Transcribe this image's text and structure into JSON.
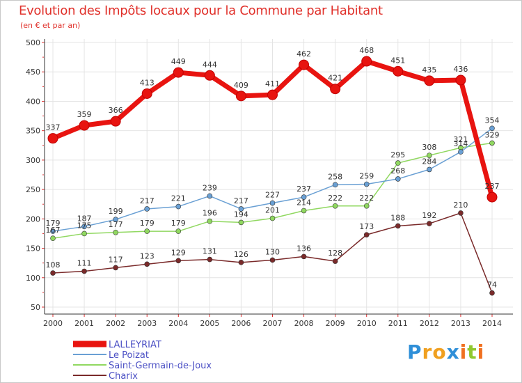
{
  "chart_data": {
    "type": "line",
    "title": "Evolution des Impôts locaux pour la Commune par Habitant",
    "subtitle": "(en € et par an)",
    "xlabel": "",
    "ylabel": "",
    "x": [
      "2000",
      "2001",
      "2002",
      "2003",
      "2004",
      "2005",
      "2006",
      "2007",
      "2008",
      "2009",
      "2010",
      "2011",
      "2012",
      "2013",
      "2014"
    ],
    "ylim": [
      50,
      500
    ],
    "yticks": [
      50,
      100,
      150,
      200,
      250,
      300,
      350,
      400,
      450,
      500
    ],
    "legend_position": "bottom-left",
    "series": [
      {
        "name": "LALLEYRIAT",
        "color": "#e81410",
        "values": [
          337,
          359,
          366,
          413,
          449,
          444,
          409,
          411,
          462,
          421,
          468,
          451,
          435,
          436,
          237
        ]
      },
      {
        "name": "Le Poizat",
        "color": "#6aa0d4",
        "values": [
          179,
          187,
          199,
          217,
          221,
          239,
          217,
          227,
          237,
          258,
          259,
          268,
          284,
          314,
          354
        ]
      },
      {
        "name": "Saint-Germain-de-Joux",
        "color": "#90d860",
        "values": [
          167,
          175,
          177,
          179,
          179,
          196,
          194,
          201,
          214,
          222,
          222,
          295,
          308,
          321,
          329
        ]
      },
      {
        "name": "Charix",
        "color": "#7a2a2a",
        "values": [
          108,
          111,
          117,
          123,
          129,
          131,
          126,
          130,
          136,
          128,
          173,
          188,
          192,
          210,
          74
        ]
      }
    ]
  },
  "logo": {
    "letters": [
      "P",
      "r",
      "o",
      "x",
      "i",
      "t",
      "i"
    ],
    "colors": [
      "#2f8fd8",
      "#f0a020",
      "#f0a020",
      "#2f8fd8",
      "#f07020",
      "#90c830",
      "#f07020"
    ]
  }
}
